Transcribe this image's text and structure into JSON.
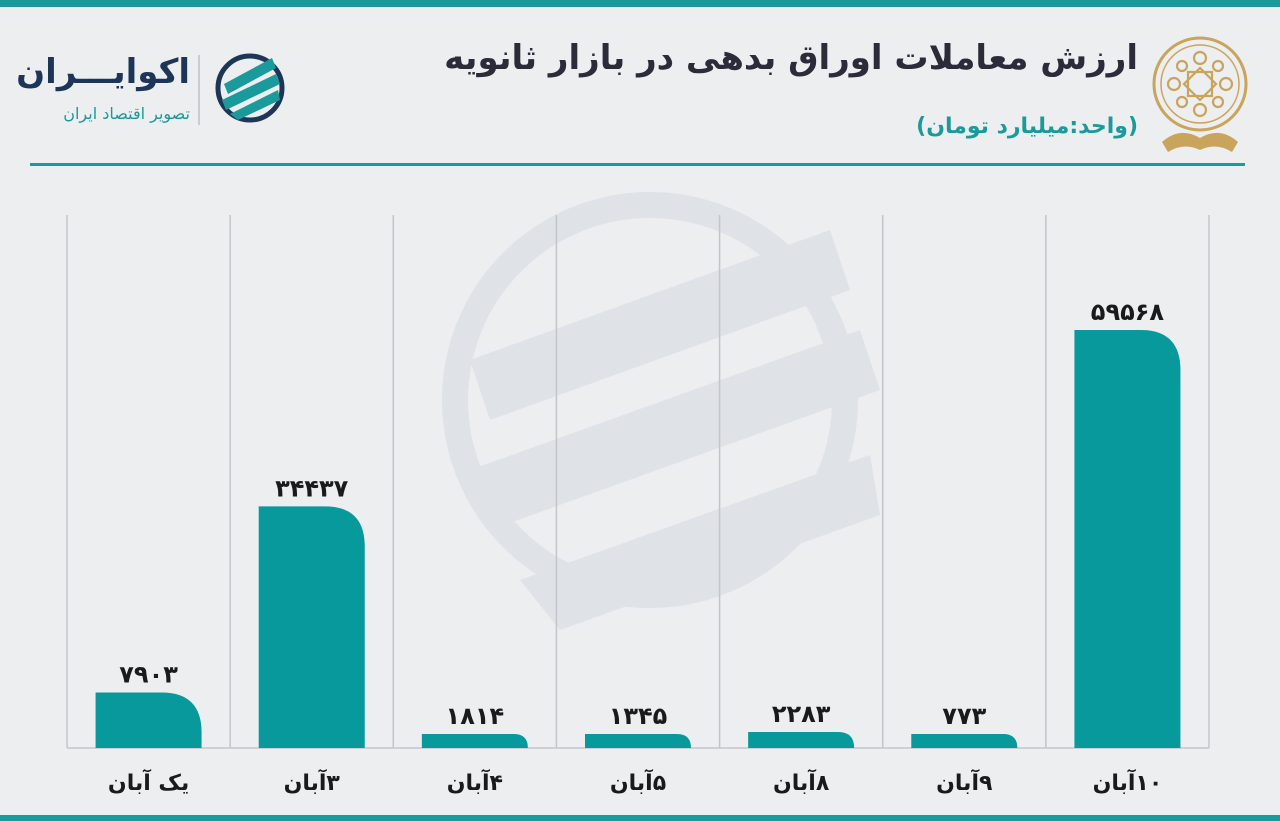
{
  "header": {
    "title": "ارزش معاملات اوراق بدهی در بازار ثانویه",
    "unit": "(واحد:میلیارد تومان)"
  },
  "brand": {
    "name": "اکوایـــران",
    "tagline": "تصویر اقتصاد ایران",
    "emblem_icon": "stock-exchange-emblem-icon",
    "logo_icon": "ecoiran-logo-icon"
  },
  "colors": {
    "bar": "#07999b",
    "accent": "#1a9a9b",
    "title": "#2b2b3a"
  },
  "chart_data": {
    "type": "bar",
    "categories": [
      "یک آبان",
      "۳آبان",
      "۴آبان",
      "۵آبان",
      "۸آبان",
      "۹آبان",
      "۱۰آبان"
    ],
    "values": [
      7903,
      34437,
      1814,
      1345,
      2283,
      773,
      59568
    ],
    "value_labels": [
      "۷۹۰۳",
      "۳۴۴۳۷",
      "۱۸۱۴",
      "۱۳۴۵",
      "۲۲۸۳",
      "۷۷۳",
      "۵۹۵۶۸"
    ],
    "xlabel": "",
    "ylabel": "",
    "ylim": [
      0,
      59568
    ],
    "grid": "vertical",
    "legend": "none"
  }
}
